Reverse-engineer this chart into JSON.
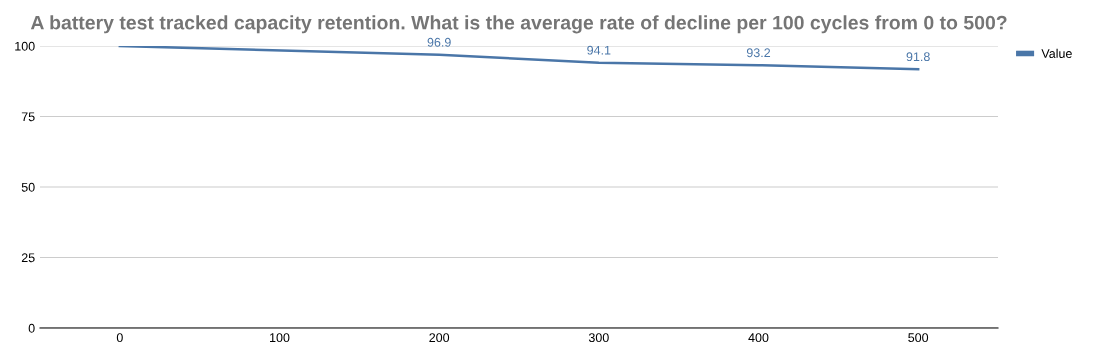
{
  "chart_data": {
    "type": "line",
    "title": "A battery test tracked capacity retention. What is the average rate of decline per 100 cycles from 0 to 500?",
    "x": [
      0,
      200,
      300,
      400,
      500
    ],
    "series": [
      {
        "name": "Value",
        "color": "#4a76a8",
        "values": [
          100,
          96.9,
          94.1,
          93.2,
          91.8
        ],
        "value_labels": [
          null,
          "96.9",
          "94.1",
          "93.2",
          "91.8"
        ]
      }
    ],
    "xlim": [
      -50,
      550
    ],
    "xticks": [
      0,
      100,
      200,
      300,
      400,
      500
    ],
    "ylim": [
      0,
      100
    ],
    "yticks": [
      0,
      25,
      50,
      75,
      100
    ],
    "grid": "y",
    "legend": "top right"
  }
}
